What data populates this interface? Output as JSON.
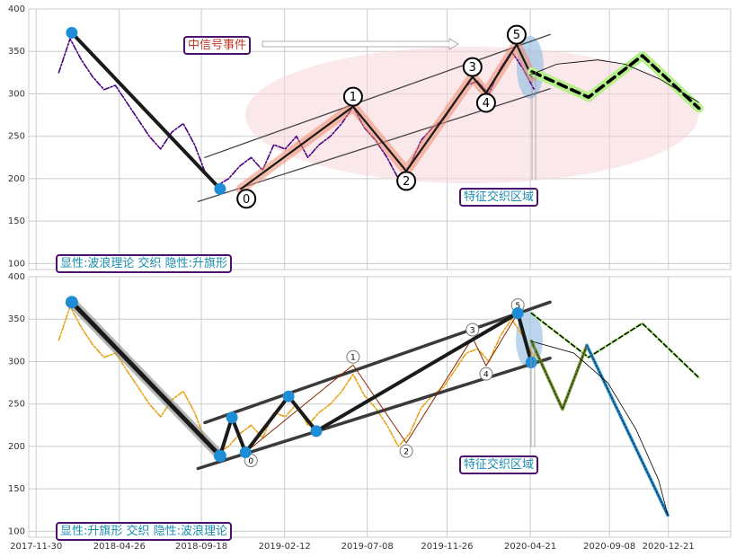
{
  "chart_data": [
    {
      "type": "line",
      "xlim": [
        -13,
        1227
      ],
      "ylim": [
        93,
        400
      ],
      "xticks": [
        0,
        147,
        292,
        439,
        585,
        726,
        873,
        1013,
        1117
      ],
      "yticks": [
        100,
        150,
        200,
        250,
        300,
        350,
        400
      ],
      "grid": true,
      "annotations": [
        "中信号事件",
        "特征交织区域",
        "显性:波浪理论 交织 隐性:升旗形"
      ],
      "series": [
        {
          "style": "dashdot",
          "color": "#4b0082",
          "x": [
            40,
            60,
            80,
            100,
            120,
            140,
            160,
            180,
            200,
            220,
            240,
            260,
            280,
            300,
            320,
            340,
            360,
            380,
            400,
            420,
            440,
            460,
            480,
            500,
            520,
            540,
            560,
            580,
            600,
            620,
            640,
            660,
            680,
            700,
            720,
            740,
            760,
            780,
            800,
            820,
            840,
            860,
            880
          ],
          "values": [
            325,
            365,
            340,
            320,
            305,
            310,
            290,
            270,
            250,
            235,
            255,
            265,
            240,
            205,
            192,
            200,
            215,
            225,
            210,
            240,
            235,
            250,
            225,
            240,
            250,
            265,
            285,
            260,
            245,
            225,
            200,
            215,
            245,
            260,
            270,
            290,
            310,
            315,
            300,
            330,
            350,
            330,
            305
          ]
        },
        {
          "style": "channel",
          "color": "#444444",
          "x": [
            298,
            908
          ],
          "values": [
            225,
            370
          ]
        },
        {
          "style": "channel",
          "color": "#444444",
          "x": [
            286,
            908
          ],
          "values": [
            173,
            306
          ]
        },
        {
          "style": "thick",
          "color": "#1a1a1a",
          "marker_color": "#1f8dd6",
          "x": [
            63,
            325
          ],
          "values": [
            372,
            188
          ]
        },
        {
          "style": "wave",
          "color": "#1a1a1a",
          "x": [
            362,
            560,
            654,
            771,
            795,
            849,
            876
          ],
          "values": [
            188,
            285,
            209,
            320,
            301,
            358,
            320
          ],
          "labels": [
            "0",
            "1",
            "2",
            "3",
            "4",
            "5"
          ]
        },
        {
          "style": "projection",
          "color": "#000000",
          "x": [
            876,
            976,
            1071,
            1171
          ],
          "values": [
            326,
            296,
            345,
            283
          ]
        },
        {
          "style": "arc",
          "color": "#000000",
          "x": [
            872,
            920,
            992,
            1040,
            1100,
            1171
          ],
          "values": [
            322,
            335,
            340,
            335,
            318,
            290
          ]
        }
      ]
    },
    {
      "type": "line",
      "xlim": [
        -13,
        1227
      ],
      "ylim": [
        93,
        400
      ],
      "xticks": [
        {
          "value": 0,
          "label": "2017-11-30"
        },
        {
          "value": 147,
          "label": "2018-04-26"
        },
        {
          "value": 292,
          "label": "2018-09-18"
        },
        {
          "value": 439,
          "label": "2019-02-12"
        },
        {
          "value": 585,
          "label": "2019-07-08"
        },
        {
          "value": 726,
          "label": "2019-11-26"
        },
        {
          "value": 873,
          "label": "2020-04-21"
        },
        {
          "value": 1013,
          "label": "2020-09-08"
        },
        {
          "value": 1117,
          "label": "2020-12-21"
        }
      ],
      "yticks": [
        100,
        150,
        200,
        250,
        300,
        350,
        400
      ],
      "grid": true,
      "annotations": [
        "特征交织区域",
        "显性:升旗形 交织 隐性:波浪理论"
      ],
      "series": [
        {
          "style": "dashdot",
          "color": "#e8a317",
          "x": [
            40,
            60,
            80,
            100,
            120,
            140,
            160,
            180,
            200,
            220,
            240,
            260,
            280,
            300,
            320,
            340,
            360,
            380,
            400,
            420,
            440,
            460,
            480,
            500,
            520,
            540,
            560,
            580,
            600,
            620,
            640,
            660,
            680,
            700,
            720,
            740,
            760,
            780,
            800,
            820,
            840,
            860,
            880
          ],
          "values": [
            325,
            365,
            340,
            320,
            305,
            310,
            290,
            270,
            250,
            235,
            255,
            265,
            240,
            205,
            192,
            200,
            215,
            225,
            210,
            240,
            235,
            250,
            225,
            240,
            250,
            265,
            285,
            260,
            245,
            225,
            200,
            215,
            245,
            260,
            270,
            290,
            310,
            315,
            300,
            330,
            350,
            330,
            305
          ]
        },
        {
          "style": "channel-bold",
          "color": "#3a3a3a",
          "x": [
            298,
            908
          ],
          "values": [
            228,
            370
          ]
        },
        {
          "style": "channel-bold",
          "color": "#3a3a3a",
          "x": [
            286,
            908
          ],
          "values": [
            174,
            304
          ]
        },
        {
          "style": "thin-wave",
          "color": "#8b2500",
          "x": [
            370,
            560,
            654,
            771,
            795,
            851
          ],
          "values": [
            193,
            296,
            204,
            328,
            295,
            357
          ],
          "labels": [
            "0",
            "1",
            "2",
            "3",
            "4",
            "5"
          ]
        },
        {
          "style": "heavy",
          "color": "#1a1a1a",
          "marker_color": "#1f8dd6",
          "x": [
            63,
            325
          ],
          "values": [
            370,
            189
          ]
        },
        {
          "style": "thick",
          "color": "#1a1a1a",
          "marker_color": "#1f8dd6",
          "x": [
            325,
            346,
            370,
            446,
            495,
            851,
            875
          ],
          "values": [
            189,
            234,
            193,
            259,
            218,
            357,
            299
          ]
        },
        {
          "style": "projection-thin",
          "color": "#000000",
          "x": [
            875,
            976,
            1071,
            1171
          ],
          "values": [
            357,
            305,
            345,
            281
          ]
        },
        {
          "style": "dotted",
          "color": "#6b8e23",
          "x": [
            875,
            930,
            973
          ],
          "values": [
            324,
            244,
            319
          ]
        },
        {
          "style": "dotted",
          "color": "#1f8dd6",
          "x": [
            973,
            1116
          ],
          "values": [
            319,
            119
          ]
        },
        {
          "style": "arc",
          "color": "#000000",
          "x": [
            875,
            950,
            1010,
            1060,
            1100,
            1116
          ],
          "values": [
            324,
            310,
            275,
            220,
            160,
            119
          ]
        }
      ]
    }
  ]
}
